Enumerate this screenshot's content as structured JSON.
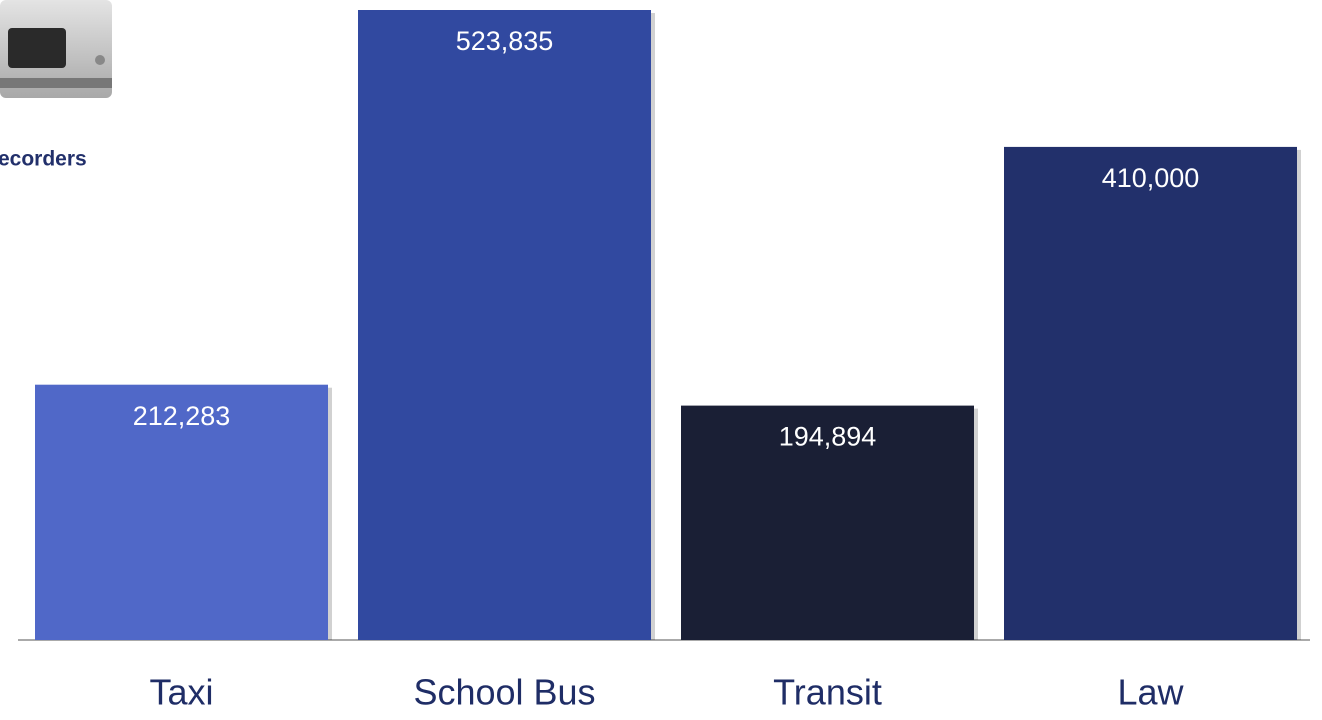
{
  "chart_data": {
    "type": "bar",
    "annotations": [
      "ecorders"
    ],
    "categories": [
      "Taxi",
      "School Bus",
      "Transit",
      "Law"
    ],
    "values": [
      212283,
      523835,
      194894,
      410000
    ],
    "value_labels": [
      "212,283",
      "523,835",
      "194,894",
      "410,000"
    ],
    "colors": [
      "#5068c8",
      "#3149a0",
      "#1a1f35",
      "#22306b"
    ]
  }
}
